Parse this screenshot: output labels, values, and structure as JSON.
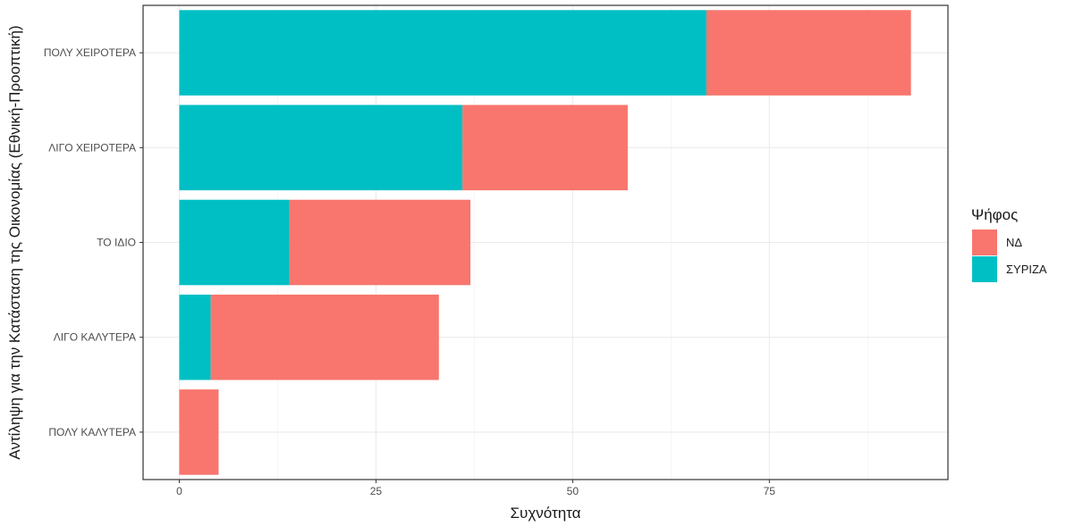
{
  "chart_data": {
    "type": "bar",
    "orientation": "horizontal",
    "stacked": true,
    "categories": [
      "ΠΟΛΥ ΧΕΙΡΟΤΕΡΑ",
      "ΛΙΓΟ ΧΕΙΡΟΤΕΡΑ",
      "ΤΟ ΙΔΙΟ",
      "ΛΙΓΟ ΚΑΛΥΤΕΡΑ",
      "ΠΟΛΥ ΚΑΛΥΤΕΡΑ"
    ],
    "series": [
      {
        "name": "ΣΥΡΙΖΑ",
        "color": "#00BFC4",
        "values": [
          67,
          36,
          14,
          4,
          0
        ]
      },
      {
        "name": "ΝΔ",
        "color": "#F8766D",
        "values": [
          26,
          21,
          23,
          29,
          5
        ]
      }
    ],
    "xlabel": "Συχνότητα",
    "ylabel": "Αντίληψη για την Κατάσταση της Οικονομίας (Εθνική-Προοπτική)",
    "xlim": [
      -4.6,
      97.7
    ],
    "xticks": [
      0,
      25,
      50,
      75
    ],
    "grid": true,
    "legend": {
      "title": "Ψήφος",
      "position": "right",
      "entries": [
        {
          "label": "ΝΔ",
          "color": "#F8766D"
        },
        {
          "label": "ΣΥΡΙΖΑ",
          "color": "#00BFC4"
        }
      ]
    }
  }
}
